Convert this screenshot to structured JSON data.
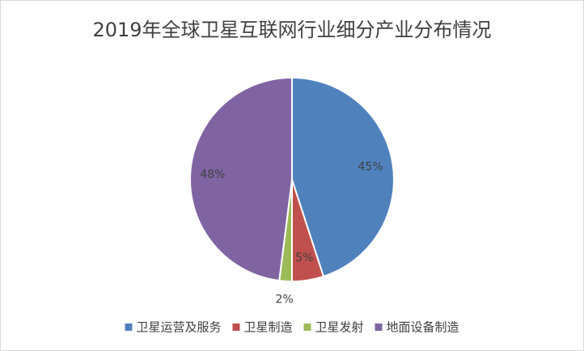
{
  "chart_data": {
    "type": "pie",
    "title": "2019年全球卫星互联网行业细分产业分布情况",
    "categories": [
      "卫星运营及服务",
      "卫星制造",
      "卫星发射",
      "地面设备制造"
    ],
    "values": [
      45,
      5,
      2,
      48
    ],
    "value_labels": [
      "45%",
      "5%",
      "2%",
      "48%"
    ],
    "colors": [
      "#4f81bd",
      "#c0504d",
      "#9bbb59",
      "#8064a2"
    ],
    "legend": "bottom"
  }
}
